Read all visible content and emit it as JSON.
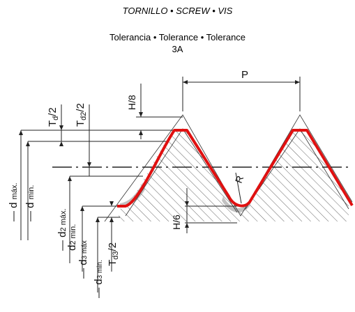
{
  "header": {
    "title": "TORNILLO • SCREW • VIS",
    "subtitle": "Tolerancia • Tolerance • Tolerance",
    "grade": "3A"
  },
  "labels": {
    "pitch": "P",
    "h8": "H/8",
    "h6": "H/6",
    "radius": "R",
    "td": "T",
    "td_sub": "d",
    "td_den": "/2",
    "td2": "T",
    "td2_sub": "d2",
    "td2_den": "/2",
    "td3": "T",
    "td3_sub": "d3",
    "td3_den": "/2",
    "d": "d",
    "d_max_sub": "máx.",
    "d_min_sub": "min.",
    "d2": "d",
    "d2_max_sub": "2 máx.",
    "d2_min_sub": "2 min.",
    "d3": "d",
    "d3_max_sub": "3 máx",
    "d3_min_sub": "3 min."
  },
  "colors": {
    "profile": "#e01010",
    "lines": "#222222",
    "hatch": "#555555"
  }
}
